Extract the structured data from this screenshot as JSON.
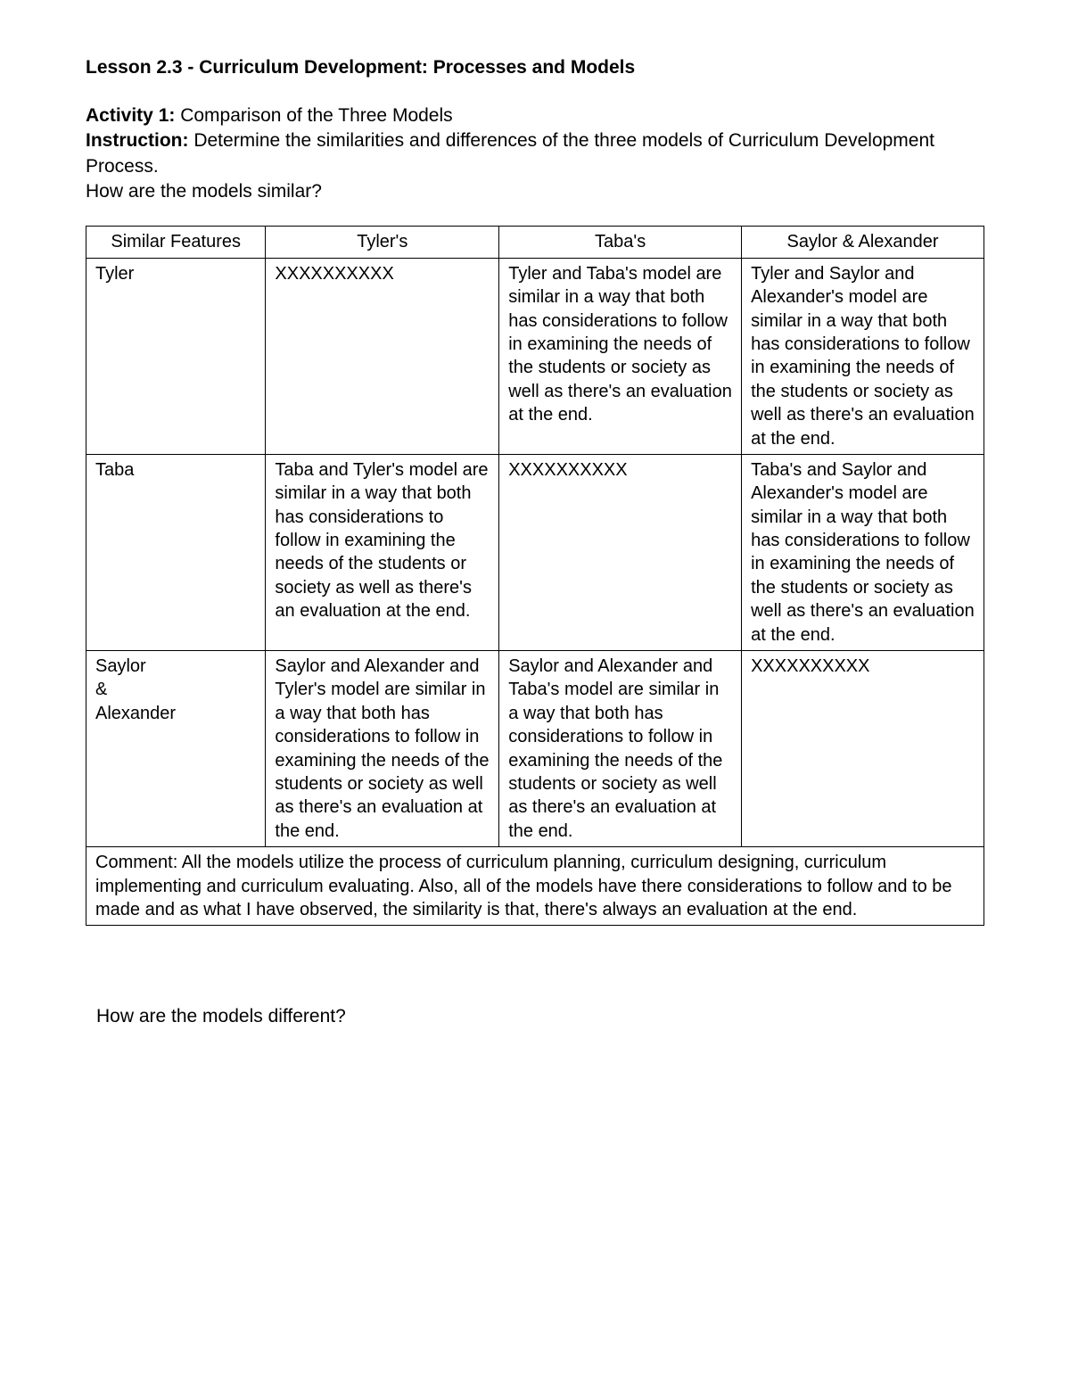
{
  "title": "Lesson 2.3 - Curriculum Development: Processes and Models",
  "activity": {
    "label": "Activity 1:",
    "text": " Comparison of the Three Models"
  },
  "instruction": {
    "label": "Instruction:",
    "text": " Determine the similarities and differences of the three models of Curriculum Development Process."
  },
  "question1": "How are the models similar?",
  "table": {
    "headers": [
      "Similar Features",
      "Tyler's",
      "Taba's",
      "Saylor & Alexander"
    ],
    "rows": [
      {
        "name": "Tyler",
        "cells": [
          "XXXXXXXXXX",
          "Tyler and Taba's model are similar in a way that both has considerations to follow in examining the needs of the students or society as well as there's an evaluation at the end.",
          "Tyler and Saylor and Alexander's model are similar in a way that both has considerations to follow in examining the needs of the students or society as well as there's an evaluation at the end."
        ],
        "placeholder_index": 0
      },
      {
        "name": "Taba",
        "cells": [
          "Taba and Tyler's model are similar in a way that both has considerations to follow in examining the needs of the students or society as well as there's an evaluation at the end.",
          "XXXXXXXXXX",
          "Taba's and Saylor and Alexander's model are similar in a way that both has considerations to follow in examining the needs of the students or society as well as there's an evaluation at the end."
        ],
        "placeholder_index": 1
      },
      {
        "name_lines": [
          "Saylor",
          "&",
          "Alexander"
        ],
        "cells": [
          "Saylor and Alexander and Tyler's model are similar in a way that both has considerations to follow in examining the needs of the students or society as well as there's an evaluation at the end.",
          "Saylor and Alexander and Taba's model are similar in a way that both has considerations to follow in examining the needs of the students or society as well as there's an evaluation at the end.",
          "XXXXXXXXXX"
        ],
        "placeholder_index": 2
      }
    ],
    "comment": "Comment: All the models utilize the process of curriculum planning, curriculum designing, curriculum implementing and curriculum evaluating. Also, all of the models have there considerations to follow and to be made and as what I have observed, the similarity is that, there's always an evaluation at the end."
  },
  "question2": "How are the models different?",
  "col_widths": [
    "20%",
    "26%",
    "27%",
    "27%"
  ],
  "colors": {
    "border": "#000000",
    "background": "#ffffff",
    "text": "#000000"
  }
}
